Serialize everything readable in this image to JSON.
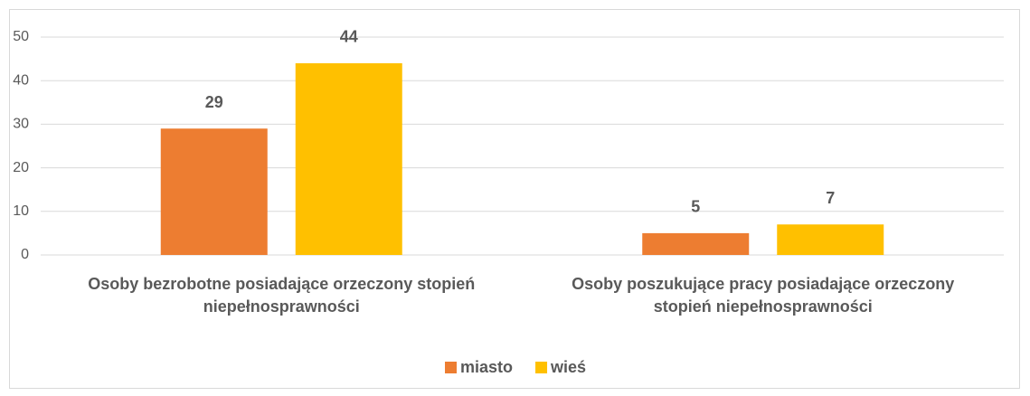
{
  "chart_data": {
    "type": "bar",
    "categories": [
      "Osoby bezrobotne posiadające orzeczony stopień niepełnosprawności",
      "Osoby poszukujące pracy posiadające orzeczony stopień niepełnosprawności"
    ],
    "series": [
      {
        "name": "miasto",
        "color": "#ED7D31",
        "values": [
          29,
          5
        ]
      },
      {
        "name": "wieś",
        "color": "#FFC000",
        "values": [
          44,
          7
        ]
      }
    ],
    "ylim": [
      0,
      50
    ],
    "yticks": [
      0,
      10,
      20,
      30,
      40,
      50
    ],
    "grid": true,
    "legend": "bottom"
  }
}
